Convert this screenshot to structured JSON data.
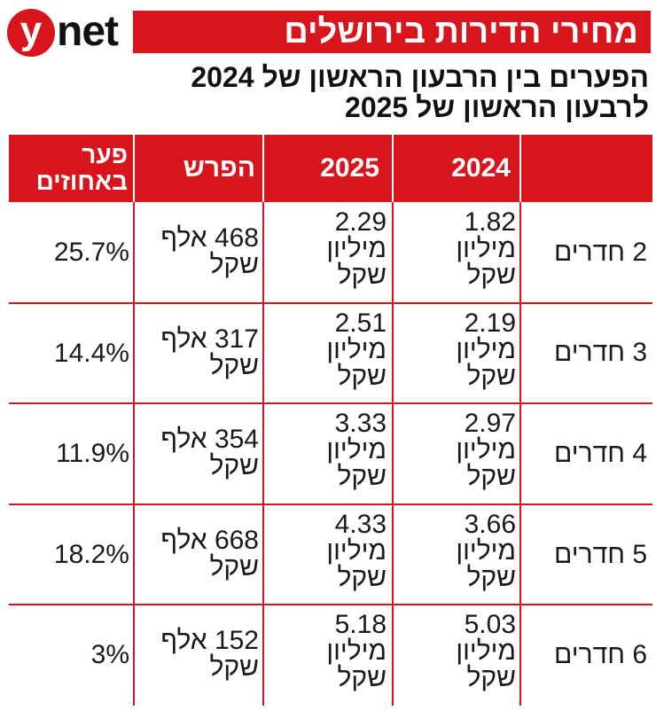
{
  "logo": {
    "y": "y",
    "net": "net"
  },
  "title": "מחירי הדירות בירושלים",
  "subtitle_line1": "הפערים בין הרבעון הראשון של 2024",
  "subtitle_line2": "לרבעון הראשון של 2025",
  "colors": {
    "accent": "#d8141c",
    "text": "#1a1a1a"
  },
  "chart_data": {
    "type": "table",
    "headers": [
      "",
      "2024",
      "2025",
      "הפרש",
      "פער באחוזים"
    ],
    "header_pct_line1": "פער",
    "header_pct_line2": "באחוזים",
    "rows": [
      {
        "rooms": "2 חדרים",
        "y2024": [
          "1.82",
          "מיליון",
          "שקל"
        ],
        "y2025": [
          "2.29",
          "מיליון",
          "שקל"
        ],
        "diff": [
          "468 אלף",
          "שקל"
        ],
        "pct": "25.7%"
      },
      {
        "rooms": "3 חדרים",
        "y2024": [
          "2.19",
          "מיליון",
          "שקל"
        ],
        "y2025": [
          "2.51",
          "מיליון",
          "שקל"
        ],
        "diff": [
          "317 אלף",
          "שקל"
        ],
        "pct": "14.4%"
      },
      {
        "rooms": "4 חדרים",
        "y2024": [
          "2.97",
          "מיליון",
          "שקל"
        ],
        "y2025": [
          "3.33",
          "מיליון",
          "שקל"
        ],
        "diff": [
          "354 אלף",
          "שקל"
        ],
        "pct": "11.9%"
      },
      {
        "rooms": "5 חדרים",
        "y2024": [
          "3.66",
          "מיליון",
          "שקל"
        ],
        "y2025": [
          "4.33",
          "מיליון",
          "שקל"
        ],
        "diff": [
          "668 אלף",
          "שקל"
        ],
        "pct": "18.2%"
      },
      {
        "rooms": "6 חדרים",
        "y2024": [
          "5.03",
          "מיליון",
          "שקל"
        ],
        "y2025": [
          "5.18",
          "מיליון",
          "שקל"
        ],
        "diff": [
          "152 אלף",
          "שקל"
        ],
        "pct": "3%"
      }
    ]
  }
}
